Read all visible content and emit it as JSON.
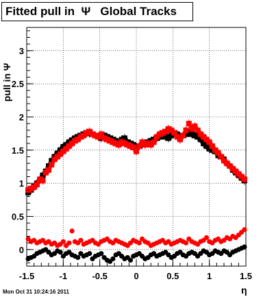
{
  "chart_data": {
    "type": "scatter",
    "title": "Fitted pull in  Ψ   Global Tracks",
    "xlabel": "η",
    "ylabel": "pull in Ψ",
    "xlim": [
      -1.5,
      1.5
    ],
    "ylim": [
      -0.25,
      3.35
    ],
    "xticks": [
      "-1.5",
      "-1",
      "-0.5",
      "0",
      "0.5",
      "1",
      "1.5"
    ],
    "yticks": [
      "0",
      "0.5",
      "1",
      "1.5",
      "2",
      "2.5",
      "3"
    ],
    "grid": true,
    "series": [
      {
        "color": "#000000",
        "marker": "square",
        "x": [
          -1.48,
          -1.44,
          -1.4,
          -1.36,
          -1.32,
          -1.28,
          -1.24,
          -1.2,
          -1.16,
          -1.12,
          -1.08,
          -1.04,
          -1.0,
          -0.96,
          -0.92,
          -0.88,
          -0.84,
          -0.8,
          -0.76,
          -0.72,
          -0.68,
          -0.64,
          -0.6,
          -0.56,
          -0.52,
          -0.48,
          -0.44,
          -0.4,
          -0.36,
          -0.32,
          -0.28,
          -0.24,
          -0.2,
          -0.16,
          -0.12,
          -0.08,
          -0.04,
          0.0,
          0.04,
          0.08,
          0.12,
          0.16,
          0.2,
          0.24,
          0.28,
          0.32,
          0.36,
          0.4,
          0.44,
          0.48,
          0.52,
          0.56,
          0.6,
          0.64,
          0.68,
          0.72,
          0.76,
          0.8,
          0.84,
          0.88,
          0.92,
          0.96,
          1.0,
          1.04,
          1.08,
          1.12,
          1.16,
          1.2,
          1.24,
          1.28,
          1.32,
          1.36,
          1.4,
          1.44,
          1.48
        ],
        "y": [
          0.86,
          0.9,
          0.95,
          1.0,
          1.05,
          1.12,
          1.18,
          1.26,
          1.34,
          1.4,
          1.45,
          1.5,
          1.55,
          1.58,
          1.62,
          1.65,
          1.68,
          1.7,
          1.72,
          1.74,
          1.76,
          1.75,
          1.74,
          1.72,
          1.7,
          1.68,
          1.72,
          1.7,
          1.68,
          1.66,
          1.64,
          1.6,
          1.66,
          1.68,
          1.62,
          1.6,
          1.58,
          1.55,
          1.56,
          1.58,
          1.6,
          1.62,
          1.64,
          1.66,
          1.68,
          1.7,
          1.72,
          1.7,
          1.68,
          1.72,
          1.76,
          1.74,
          1.7,
          1.72,
          1.74,
          1.76,
          1.74,
          1.72,
          1.7,
          1.66,
          1.6,
          1.56,
          1.52,
          1.5,
          1.48,
          1.42,
          1.4,
          1.36,
          1.3,
          1.26,
          1.2,
          1.16,
          1.12,
          1.08,
          1.04
        ]
      },
      {
        "color": "#ff0000",
        "marker": "square",
        "x": [
          -1.48,
          -1.44,
          -1.4,
          -1.36,
          -1.32,
          -1.28,
          -1.24,
          -1.2,
          -1.16,
          -1.12,
          -1.08,
          -1.04,
          -1.0,
          -0.96,
          -0.92,
          -0.88,
          -0.84,
          -0.8,
          -0.76,
          -0.72,
          -0.68,
          -0.64,
          -0.6,
          -0.56,
          -0.52,
          -0.48,
          -0.44,
          -0.4,
          -0.36,
          -0.32,
          -0.28,
          -0.24,
          -0.2,
          -0.16,
          -0.12,
          -0.08,
          -0.04,
          0.0,
          0.04,
          0.08,
          0.12,
          0.16,
          0.2,
          0.24,
          0.28,
          0.32,
          0.36,
          0.4,
          0.44,
          0.48,
          0.52,
          0.56,
          0.6,
          0.64,
          0.68,
          0.72,
          0.76,
          0.8,
          0.84,
          0.88,
          0.92,
          0.96,
          1.0,
          1.04,
          1.08,
          1.12,
          1.16,
          1.2,
          1.24,
          1.28,
          1.32,
          1.36,
          1.4,
          1.44,
          1.48
        ],
        "y": [
          0.9,
          0.92,
          0.94,
          0.98,
          1.06,
          1.04,
          1.16,
          1.2,
          1.28,
          1.36,
          1.4,
          1.44,
          1.48,
          1.52,
          1.56,
          1.6,
          1.64,
          1.66,
          1.7,
          1.72,
          1.76,
          1.78,
          1.74,
          1.72,
          1.7,
          1.74,
          1.68,
          1.66,
          1.64,
          1.62,
          1.6,
          1.58,
          1.62,
          1.6,
          1.58,
          1.56,
          1.54,
          1.48,
          1.56,
          1.62,
          1.58,
          1.6,
          1.58,
          1.62,
          1.7,
          1.74,
          1.76,
          1.78,
          1.82,
          1.8,
          1.76,
          1.7,
          1.66,
          1.72,
          1.8,
          1.9,
          1.82,
          1.86,
          1.8,
          1.74,
          1.7,
          1.66,
          1.62,
          1.56,
          1.5,
          1.46,
          1.4,
          1.34,
          1.3,
          1.26,
          1.22,
          1.18,
          1.14,
          1.1,
          1.06
        ]
      },
      {
        "color": "#000000",
        "marker": "circle",
        "x": [
          -1.48,
          -1.44,
          -1.4,
          -1.36,
          -1.32,
          -1.28,
          -1.24,
          -1.2,
          -1.16,
          -1.12,
          -1.08,
          -1.04,
          -1.0,
          -0.96,
          -0.92,
          -0.88,
          -0.84,
          -0.8,
          -0.76,
          -0.72,
          -0.68,
          -0.64,
          -0.6,
          -0.56,
          -0.52,
          -0.48,
          -0.44,
          -0.4,
          -0.36,
          -0.32,
          -0.28,
          -0.24,
          -0.2,
          -0.16,
          -0.12,
          -0.08,
          -0.04,
          0.0,
          0.04,
          0.08,
          0.12,
          0.16,
          0.2,
          0.24,
          0.28,
          0.32,
          0.36,
          0.4,
          0.44,
          0.48,
          0.52,
          0.56,
          0.6,
          0.64,
          0.68,
          0.72,
          0.76,
          0.8,
          0.84,
          0.88,
          0.92,
          0.96,
          1.0,
          1.04,
          1.08,
          1.12,
          1.16,
          1.2,
          1.24,
          1.28,
          1.32,
          1.36,
          1.4,
          1.44,
          1.48
        ],
        "y": [
          -0.14,
          -0.12,
          -0.1,
          -0.06,
          -0.04,
          -0.02,
          0.0,
          -0.04,
          -0.08,
          -0.06,
          -0.02,
          -0.04,
          -0.1,
          -0.06,
          -0.04,
          -0.08,
          -0.1,
          -0.12,
          -0.06,
          -0.1,
          -0.08,
          -0.06,
          -0.14,
          -0.1,
          -0.08,
          -0.06,
          -0.12,
          -0.16,
          -0.18,
          -0.14,
          -0.08,
          -0.06,
          -0.1,
          -0.14,
          -0.12,
          -0.16,
          -0.1,
          -0.08,
          -0.06,
          -0.1,
          -0.14,
          -0.12,
          -0.08,
          -0.06,
          -0.1,
          -0.08,
          -0.06,
          -0.04,
          -0.08,
          -0.12,
          -0.1,
          -0.06,
          -0.04,
          -0.08,
          -0.1,
          -0.06,
          -0.04,
          -0.06,
          -0.1,
          -0.06,
          -0.02,
          -0.04,
          -0.08,
          -0.06,
          -0.02,
          -0.04,
          -0.06,
          -0.02,
          -0.04,
          -0.08,
          -0.04,
          -0.02,
          0.0,
          0.02,
          0.04
        ]
      },
      {
        "color": "#ff0000",
        "marker": "circle",
        "x": [
          -1.48,
          -1.44,
          -1.4,
          -1.36,
          -1.32,
          -1.28,
          -1.24,
          -1.2,
          -1.16,
          -1.12,
          -1.08,
          -1.04,
          -1.0,
          -0.96,
          -0.92,
          -0.88,
          -0.84,
          -0.8,
          -0.76,
          -0.72,
          -0.68,
          -0.64,
          -0.6,
          -0.56,
          -0.52,
          -0.48,
          -0.44,
          -0.4,
          -0.36,
          -0.32,
          -0.28,
          -0.24,
          -0.2,
          -0.16,
          -0.12,
          -0.08,
          -0.04,
          0.0,
          0.04,
          0.08,
          0.12,
          0.16,
          0.2,
          0.24,
          0.28,
          0.32,
          0.36,
          0.4,
          0.44,
          0.48,
          0.52,
          0.56,
          0.6,
          0.64,
          0.68,
          0.72,
          0.76,
          0.8,
          0.84,
          0.88,
          0.92,
          0.96,
          1.0,
          1.04,
          1.08,
          1.12,
          1.16,
          1.2,
          1.24,
          1.28,
          1.32,
          1.36,
          1.4,
          1.44,
          1.48
        ],
        "y": [
          0.16,
          0.12,
          0.14,
          0.1,
          0.12,
          0.14,
          0.1,
          0.12,
          0.08,
          0.1,
          0.06,
          0.08,
          0.12,
          0.06,
          0.1,
          0.28,
          0.12,
          0.1,
          0.14,
          0.08,
          0.1,
          0.12,
          0.14,
          0.1,
          0.08,
          0.12,
          0.14,
          0.16,
          0.12,
          0.1,
          0.14,
          0.12,
          0.1,
          0.08,
          0.06,
          0.1,
          0.14,
          0.12,
          0.1,
          0.16,
          0.12,
          0.1,
          0.06,
          0.08,
          0.1,
          0.12,
          0.14,
          0.1,
          0.12,
          0.08,
          0.1,
          0.12,
          0.14,
          0.12,
          0.1,
          0.16,
          0.12,
          0.1,
          0.08,
          0.12,
          0.14,
          0.18,
          0.12,
          0.1,
          0.14,
          0.16,
          0.12,
          0.14,
          0.18,
          0.16,
          0.2,
          0.18,
          0.22,
          0.26,
          0.3
        ]
      }
    ]
  },
  "footer": "Mon Oct 31 10:24:16 2011",
  "colors": {
    "frame": "#000000",
    "grid": "#000000",
    "background": "#ffffff"
  }
}
